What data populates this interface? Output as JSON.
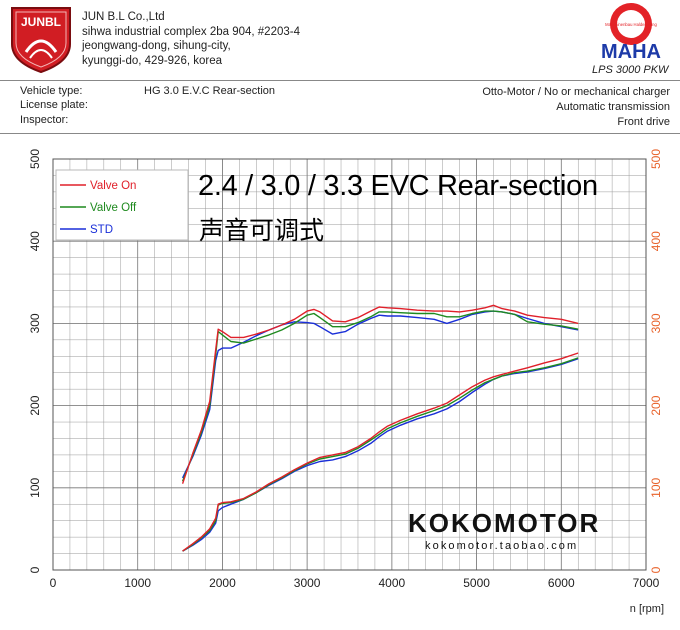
{
  "header": {
    "company_lines": [
      "JUN B.L Co.,Ltd",
      "sihwa industrial complex 2ba 904, #2203-4",
      "jeongwang-dong, sihung-city,",
      "kyunggi-do, 429-926, korea"
    ],
    "left_logo_text": "JUNBL",
    "right_logo_text": "MAHA",
    "right_logo_ring_text": "Maschinenbau Haldenwang",
    "model": "LPS 3000 PKW"
  },
  "info": {
    "vehicle_type_label": "Vehicle type:",
    "vehicle_type_value": "HG 3.0 E.V.C Rear-section",
    "license_plate_label": "License plate:",
    "inspector_label": "Inspector:",
    "right_lines": [
      "Otto-Motor / No or mechanical charger",
      "Automatic transmission",
      "Front drive"
    ]
  },
  "overlay": {
    "title": "2.4 / 3.0 / 3.3 EVC Rear-section",
    "subtitle": "声音可调式"
  },
  "watermark": {
    "brand": "KOKOMOTOR",
    "site": "kokomotor.taobao.com"
  },
  "colors": {
    "valve_on": "#e0202a",
    "valve_off": "#1f8a1f",
    "std": "#1a2fd8",
    "right_axis": "#e8622a",
    "grid": "#9a9a9a"
  },
  "chart_data": {
    "type": "line",
    "xlabel": "n [rpm]",
    "xlim": [
      0,
      7000
    ],
    "ylim": [
      0,
      500
    ],
    "x_ticks": [
      0,
      1000,
      2000,
      3000,
      4000,
      5000,
      6000,
      7000
    ],
    "y_ticks": [
      0,
      100,
      200,
      300,
      400,
      500
    ],
    "grid": true,
    "legend_position": "top-left",
    "series": [
      {
        "name": "Valve On",
        "group": "upper",
        "x": [
          1530,
          1650,
          1750,
          1850,
          1920,
          1950,
          2000,
          2100,
          2250,
          2400,
          2550,
          2700,
          2850,
          3000,
          3080,
          3150,
          3300,
          3450,
          3600,
          3750,
          3850,
          3950,
          4100,
          4300,
          4500,
          4650,
          4800,
          4950,
          5100,
          5200,
          5300,
          5450,
          5600,
          5800,
          6000,
          6200
        ],
        "y": [
          105,
          142,
          170,
          205,
          268,
          293,
          290,
          283,
          283,
          287,
          292,
          298,
          305,
          315,
          317,
          314,
          303,
          302,
          307,
          315,
          320,
          319,
          318,
          316,
          315,
          315,
          314,
          316,
          319,
          322,
          318,
          315,
          310,
          307,
          305,
          300
        ]
      },
      {
        "name": "Valve Off",
        "group": "upper",
        "x": [
          1530,
          1650,
          1750,
          1850,
          1920,
          1950,
          2000,
          2100,
          2250,
          2400,
          2550,
          2700,
          2850,
          3000,
          3080,
          3150,
          3300,
          3450,
          3600,
          3750,
          3850,
          3950,
          4100,
          4300,
          4500,
          4650,
          4800,
          4950,
          5100,
          5200,
          5300,
          5450,
          5600,
          5800,
          6000,
          6200
        ],
        "y": [
          108,
          140,
          167,
          200,
          262,
          290,
          286,
          278,
          276,
          281,
          286,
          292,
          300,
          310,
          312,
          307,
          296,
          296,
          301,
          308,
          314,
          314,
          313,
          312,
          312,
          308,
          308,
          312,
          315,
          315,
          314,
          311,
          302,
          299,
          297,
          293
        ]
      },
      {
        "name": "STD",
        "group": "upper",
        "x": [
          1530,
          1650,
          1750,
          1850,
          1920,
          1950,
          2000,
          2100,
          2250,
          2400,
          2550,
          2700,
          2850,
          3000,
          3080,
          3150,
          3300,
          3450,
          3600,
          3750,
          3850,
          3950,
          4100,
          4300,
          4500,
          4650,
          4800,
          4950,
          5100,
          5200,
          5300,
          5450,
          5600,
          5800,
          6000,
          6200
        ],
        "y": [
          112,
          138,
          164,
          195,
          255,
          267,
          270,
          270,
          277,
          285,
          292,
          298,
          302,
          301,
          300,
          296,
          287,
          290,
          299,
          306,
          310,
          309,
          309,
          307,
          305,
          300,
          305,
          311,
          314,
          315,
          314,
          311,
          306,
          300,
          296,
          292
        ]
      },
      {
        "name": "Valve On",
        "group": "lower",
        "x": [
          1530,
          1650,
          1750,
          1850,
          1920,
          1950,
          2000,
          2100,
          2250,
          2400,
          2550,
          2700,
          2850,
          3000,
          3150,
          3300,
          3450,
          3600,
          3750,
          3850,
          3950,
          4100,
          4300,
          4500,
          4650,
          4800,
          4950,
          5100,
          5200,
          5300,
          5450,
          5600,
          5800,
          6000,
          6200
        ],
        "y": [
          23,
          32,
          40,
          50,
          63,
          80,
          82,
          83,
          87,
          95,
          105,
          113,
          122,
          130,
          137,
          140,
          143,
          150,
          160,
          168,
          175,
          182,
          190,
          197,
          203,
          213,
          223,
          231,
          235,
          238,
          242,
          246,
          252,
          257,
          264
        ]
      },
      {
        "name": "Valve Off",
        "group": "lower",
        "x": [
          1530,
          1650,
          1750,
          1850,
          1920,
          1950,
          2000,
          2100,
          2250,
          2400,
          2550,
          2700,
          2850,
          3000,
          3150,
          3300,
          3450,
          3600,
          3750,
          3850,
          3950,
          4100,
          4300,
          4500,
          4650,
          4800,
          4950,
          5100,
          5200,
          5300,
          5450,
          5600,
          5800,
          6000,
          6200
        ],
        "y": [
          23,
          31,
          39,
          48,
          60,
          79,
          81,
          82,
          86,
          94,
          104,
          112,
          121,
          129,
          135,
          138,
          141,
          148,
          158,
          165,
          172,
          179,
          187,
          194,
          200,
          209,
          219,
          228,
          232,
          236,
          240,
          242,
          246,
          251,
          258
        ]
      },
      {
        "name": "STD",
        "group": "lower",
        "x": [
          1530,
          1650,
          1750,
          1850,
          1920,
          1950,
          2000,
          2100,
          2250,
          2400,
          2550,
          2700,
          2850,
          3000,
          3150,
          3300,
          3450,
          3600,
          3750,
          3850,
          3950,
          4100,
          4300,
          4500,
          4650,
          4800,
          4950,
          5100,
          5200,
          5300,
          5450,
          5600,
          5800,
          6000,
          6200
        ],
        "y": [
          23,
          30,
          37,
          46,
          57,
          72,
          76,
          80,
          86,
          94,
          103,
          111,
          120,
          127,
          132,
          134,
          138,
          145,
          154,
          162,
          169,
          176,
          184,
          190,
          196,
          205,
          216,
          226,
          232,
          236,
          239,
          241,
          245,
          250,
          257
        ]
      }
    ]
  }
}
